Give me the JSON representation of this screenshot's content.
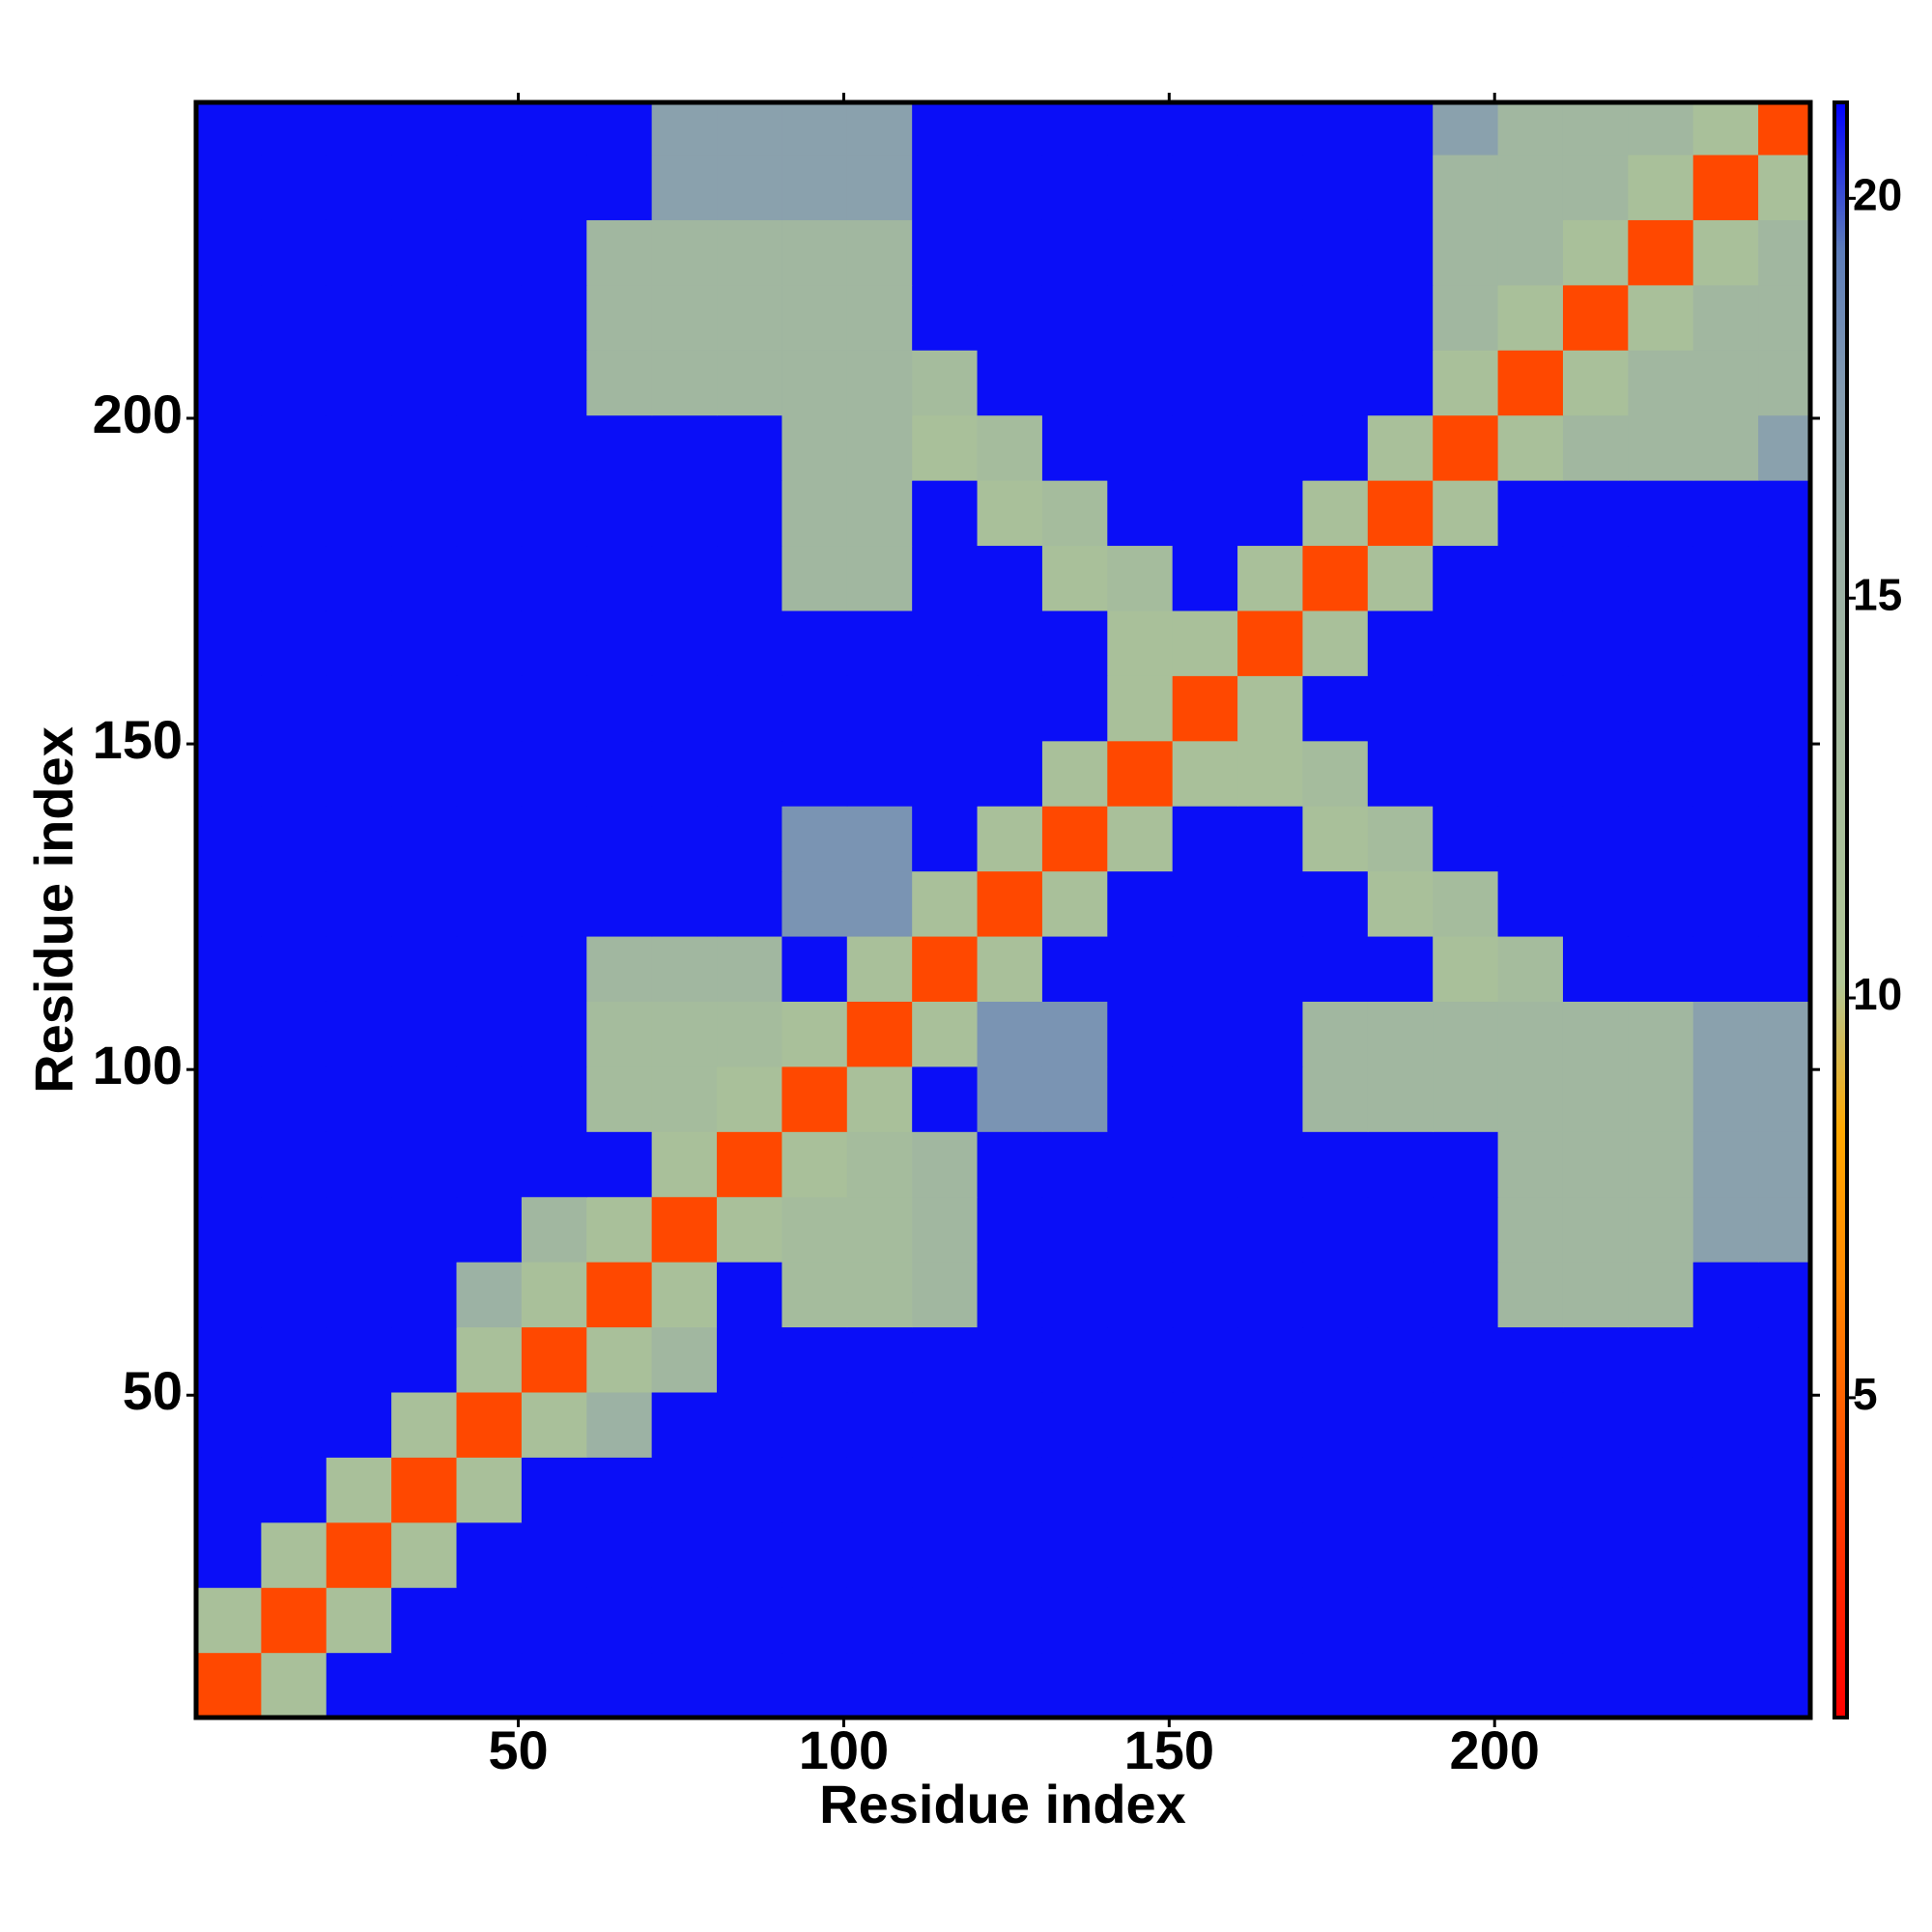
{
  "chart_data": {
    "type": "heatmap",
    "xlabel": "Residue index",
    "ylabel": "Residue index",
    "xlim": [
      0.5,
      248.5
    ],
    "ylim": [
      0.5,
      248.5
    ],
    "xticks": [
      50,
      100,
      150,
      200
    ],
    "yticks": [
      50,
      100,
      150,
      200
    ],
    "zlim": [
      1,
      21.2
    ],
    "zticks": [
      5,
      10,
      15,
      20
    ],
    "colorscale": [
      "#ff0000",
      "#ff2a00",
      "#ff5a00",
      "#ff8a00",
      "#ffa800",
      "#b2c896",
      "#a9c09a",
      "#a2b8a0",
      "#98aea6",
      "#849cb0",
      "#5c7cba",
      "#0000ff"
    ],
    "x_edges": [
      0.5,
      10.5,
      20.5,
      30.5,
      40.5,
      50.5,
      60.5,
      70.5,
      80.5,
      90.5,
      100.5,
      110.5,
      120.5,
      130.5,
      140.5,
      150.5,
      160.5,
      170.5,
      180.5,
      190.5,
      200.5,
      210.5,
      220.5,
      230.5,
      240.5,
      248.5
    ],
    "y_edges": [
      0.5,
      10.5,
      20.5,
      30.5,
      40.5,
      50.5,
      60.5,
      70.5,
      80.5,
      90.5,
      100.5,
      110.5,
      120.5,
      130.5,
      140.5,
      150.5,
      160.5,
      170.5,
      180.5,
      190.5,
      200.5,
      210.5,
      220.5,
      230.5,
      240.5,
      248.5
    ],
    "z": [
      [
        4,
        12,
        21,
        21,
        21,
        21,
        21,
        21,
        21,
        21,
        21,
        21,
        21,
        21,
        21,
        21,
        21,
        21,
        21,
        21,
        21,
        21,
        21,
        21,
        21
      ],
      [
        12,
        4,
        12,
        21,
        21,
        21,
        21,
        21,
        21,
        21,
        21,
        21,
        21,
        21,
        21,
        21,
        21,
        21,
        21,
        21,
        21,
        21,
        21,
        21,
        21
      ],
      [
        21,
        12,
        4,
        12,
        21,
        21,
        21,
        21,
        21,
        21,
        21,
        21,
        21,
        21,
        21,
        21,
        21,
        21,
        21,
        21,
        21,
        21,
        21,
        21,
        21
      ],
      [
        21,
        21,
        12,
        4,
        12,
        21,
        21,
        21,
        21,
        21,
        21,
        21,
        21,
        21,
        21,
        21,
        21,
        21,
        21,
        21,
        21,
        21,
        21,
        21,
        21
      ],
      [
        21,
        21,
        21,
        12,
        4,
        12,
        15,
        21,
        21,
        21,
        21,
        21,
        21,
        21,
        21,
        21,
        21,
        21,
        21,
        21,
        21,
        21,
        21,
        21,
        21
      ],
      [
        21,
        21,
        21,
        21,
        12,
        4,
        12,
        14,
        21,
        21,
        21,
        21,
        21,
        21,
        21,
        21,
        21,
        21,
        21,
        21,
        21,
        21,
        21,
        21,
        21
      ],
      [
        21,
        21,
        21,
        21,
        15,
        12,
        4,
        12,
        21,
        13,
        13,
        14,
        21,
        21,
        21,
        21,
        21,
        21,
        21,
        21,
        14,
        14,
        14,
        21,
        21
      ],
      [
        21,
        21,
        21,
        21,
        21,
        14,
        12,
        4,
        12,
        13,
        13,
        14,
        21,
        21,
        21,
        21,
        21,
        21,
        21,
        21,
        14,
        14,
        14,
        17,
        17
      ],
      [
        21,
        21,
        21,
        21,
        21,
        21,
        21,
        12,
        4,
        12,
        13,
        14,
        21,
        21,
        21,
        21,
        21,
        21,
        21,
        21,
        14,
        14,
        14,
        17,
        17
      ],
      [
        21,
        21,
        21,
        21,
        21,
        21,
        13,
        13,
        12,
        4,
        12,
        21,
        18,
        18,
        21,
        21,
        21,
        14,
        14,
        14,
        14,
        14,
        14,
        17,
        17
      ],
      [
        21,
        21,
        21,
        21,
        21,
        21,
        13,
        13,
        13,
        12,
        4,
        12,
        18,
        18,
        21,
        21,
        21,
        14,
        14,
        14,
        14,
        14,
        14,
        17,
        17
      ],
      [
        21,
        21,
        21,
        21,
        21,
        21,
        14,
        14,
        14,
        21,
        12,
        4,
        12,
        21,
        21,
        21,
        21,
        21,
        21,
        12,
        13,
        21,
        21,
        21,
        21
      ],
      [
        21,
        21,
        21,
        21,
        21,
        21,
        21,
        21,
        21,
        18,
        18,
        12,
        4,
        12,
        21,
        21,
        21,
        21,
        12,
        13,
        21,
        21,
        21,
        21,
        21
      ],
      [
        21,
        21,
        21,
        21,
        21,
        21,
        21,
        21,
        21,
        18,
        18,
        21,
        12,
        4,
        12,
        21,
        21,
        12,
        13,
        21,
        21,
        21,
        21,
        21,
        21
      ],
      [
        21,
        21,
        21,
        21,
        21,
        21,
        21,
        21,
        21,
        21,
        21,
        21,
        21,
        12,
        4,
        12,
        12,
        13,
        21,
        21,
        21,
        21,
        21,
        21,
        21
      ],
      [
        21,
        21,
        21,
        21,
        21,
        21,
        21,
        21,
        21,
        21,
        21,
        21,
        21,
        21,
        12,
        4,
        12,
        21,
        21,
        21,
        21,
        21,
        21,
        21,
        21
      ],
      [
        21,
        21,
        21,
        21,
        21,
        21,
        21,
        21,
        21,
        21,
        21,
        21,
        21,
        21,
        12,
        12,
        4,
        12,
        21,
        21,
        21,
        21,
        21,
        21,
        21
      ],
      [
        21,
        21,
        21,
        21,
        21,
        21,
        21,
        21,
        21,
        14,
        14,
        21,
        21,
        12,
        13,
        21,
        12,
        4,
        12,
        21,
        21,
        21,
        21,
        21,
        21
      ],
      [
        21,
        21,
        21,
        21,
        21,
        21,
        21,
        21,
        21,
        14,
        14,
        21,
        12,
        13,
        21,
        21,
        21,
        12,
        4,
        12,
        21,
        21,
        21,
        21,
        21
      ],
      [
        21,
        21,
        21,
        21,
        21,
        21,
        21,
        21,
        21,
        14,
        14,
        12,
        13,
        21,
        21,
        21,
        21,
        21,
        12,
        4,
        12,
        14,
        14,
        14,
        17
      ],
      [
        21,
        21,
        21,
        21,
        21,
        21,
        14,
        14,
        14,
        14,
        14,
        13,
        21,
        21,
        21,
        21,
        21,
        21,
        21,
        12,
        4,
        12,
        14,
        14,
        14
      ],
      [
        21,
        21,
        21,
        21,
        21,
        21,
        14,
        14,
        14,
        14,
        14,
        21,
        21,
        21,
        21,
        21,
        21,
        21,
        21,
        14,
        12,
        4,
        12,
        14,
        14
      ],
      [
        21,
        21,
        21,
        21,
        21,
        21,
        14,
        14,
        14,
        14,
        14,
        21,
        21,
        21,
        21,
        21,
        21,
        21,
        21,
        14,
        14,
        12,
        4,
        12,
        14
      ],
      [
        21,
        21,
        21,
        21,
        21,
        21,
        21,
        17,
        17,
        17,
        17,
        21,
        21,
        21,
        21,
        21,
        21,
        21,
        21,
        14,
        14,
        14,
        12,
        4,
        12
      ],
      [
        21,
        21,
        21,
        21,
        21,
        21,
        21,
        17,
        17,
        17,
        17,
        21,
        21,
        21,
        21,
        21,
        21,
        21,
        21,
        17,
        14,
        14,
        14,
        12,
        4
      ]
    ]
  }
}
